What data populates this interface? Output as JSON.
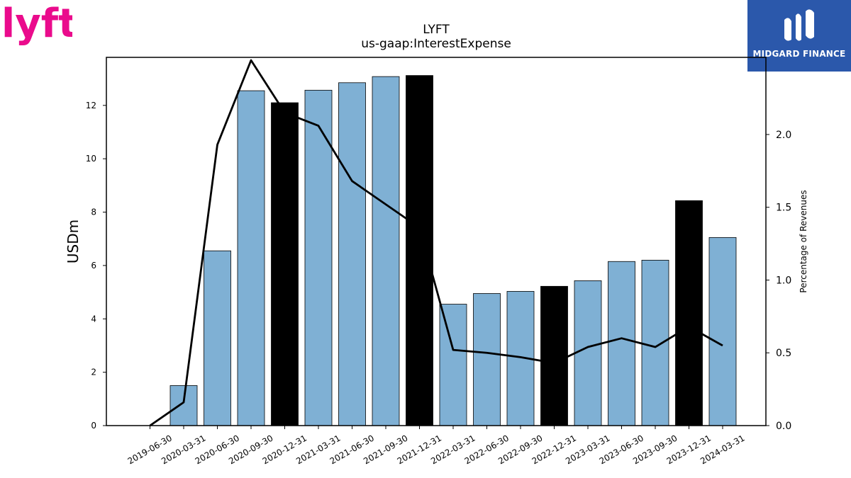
{
  "logos": {
    "left_icon": "lyft-logo",
    "left_text": "lyft",
    "left_color": "#ea0b8c",
    "right_icon": "midgard-finance-logo",
    "right_text": "MIDGARD FINANCE",
    "right_color": "#2b58ab"
  },
  "chart_data": {
    "type": "bar",
    "title": "LYFT",
    "subtitle": "us-gaap:InterestExpense",
    "ylabel": "USDm",
    "y2label": "Percentage of Revenues",
    "categories": [
      "2019-06-30",
      "2020-03-31",
      "2020-06-30",
      "2020-09-30",
      "2020-12-31",
      "2021-03-31",
      "2021-06-30",
      "2021-09-30",
      "2021-12-31",
      "2022-03-31",
      "2022-06-30",
      "2022-09-30",
      "2022-12-31",
      "2023-03-31",
      "2023-06-30",
      "2023-09-30",
      "2023-12-31",
      "2024-03-31"
    ],
    "series": [
      {
        "values": [
          0,
          1.5,
          6.55,
          12.55,
          12.1,
          12.57,
          12.85,
          13.08,
          13.12,
          4.55,
          4.95,
          5.03,
          5.22,
          5.43,
          6.15,
          6.2,
          8.43,
          7.05
        ],
        "axis": "left",
        "mark": "bar"
      },
      {
        "values": [
          0.0,
          0.16,
          1.93,
          2.51,
          2.15,
          2.06,
          1.68,
          1.52,
          1.36,
          0.52,
          0.5,
          0.47,
          0.43,
          0.54,
          0.6,
          0.54,
          0.68,
          0.55
        ],
        "axis": "right",
        "mark": "line"
      }
    ],
    "highlight_categories": [
      "2020-12-31",
      "2021-12-31",
      "2022-12-31",
      "2023-12-31"
    ],
    "ylim": [
      0,
      13.8
    ],
    "y2lim": [
      0,
      2.53
    ],
    "yticks": [
      "0",
      "2",
      "4",
      "6",
      "8",
      "10",
      "12"
    ],
    "y2ticks": [
      "0.0",
      "0.5",
      "1.0",
      "1.5",
      "2.0"
    ],
    "colors": {
      "bar": "#7fb0d4",
      "highlight_bar": "#000000",
      "line": "#000000"
    },
    "grid": false
  }
}
